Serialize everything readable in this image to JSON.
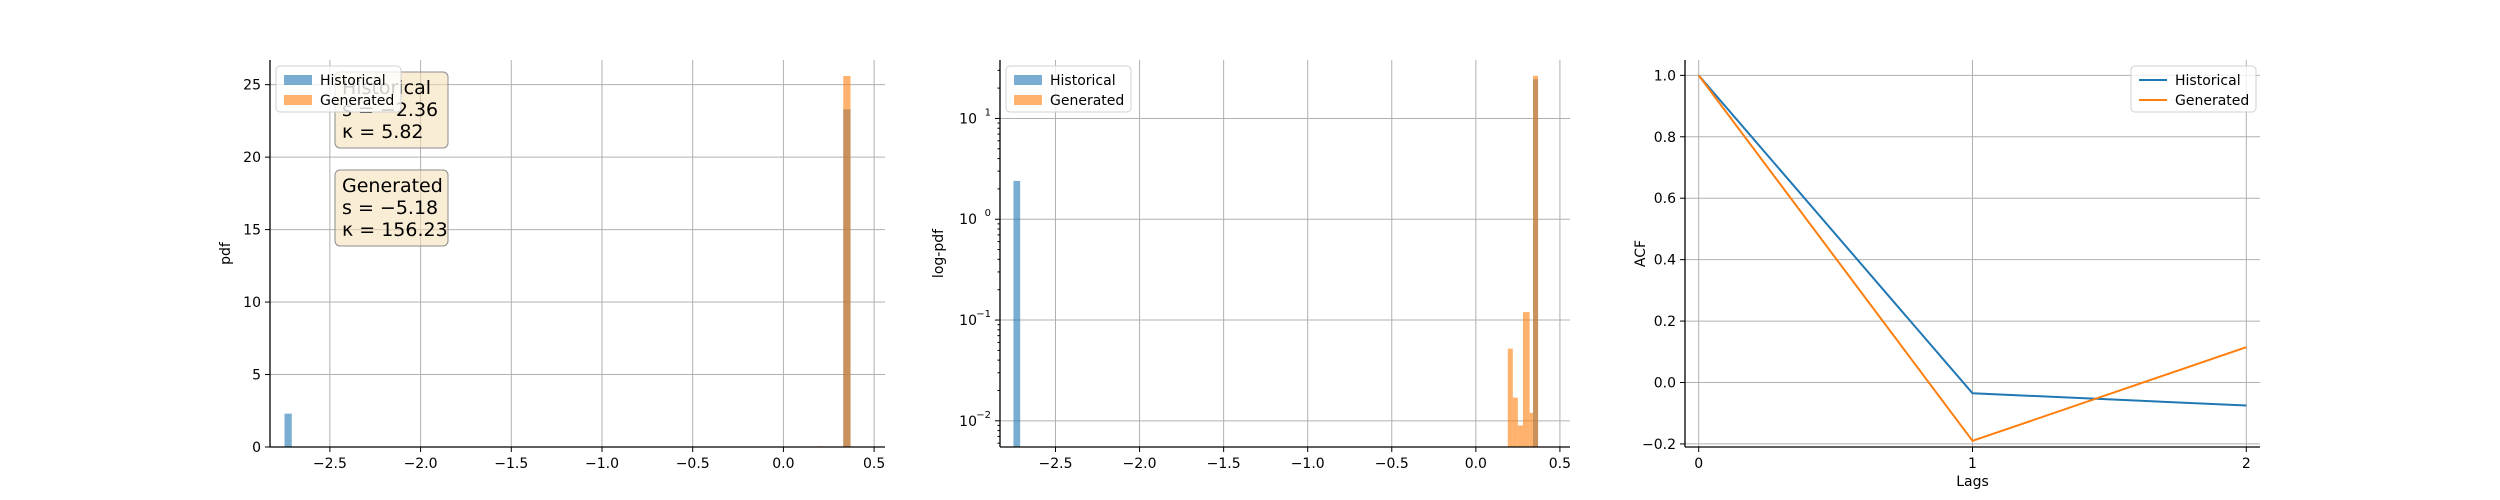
{
  "colors": {
    "historical": "#1f77b4",
    "generated": "#ff7f0e",
    "grid": "#b0b0b0",
    "stats_box_fill": "#f5deb3"
  },
  "chart_data": [
    {
      "type": "bar",
      "ylabel": "pdf",
      "xlim": [
        -2.83,
        0.56
      ],
      "ylim": [
        0,
        26.7
      ],
      "xticks": [
        -2.5,
        -2.0,
        -1.5,
        -1.0,
        -0.5,
        0.0,
        0.5
      ],
      "xtick_labels": [
        "−2.5",
        "−2.0",
        "−1.5",
        "−1.0",
        "−0.5",
        "0.0",
        "0.5"
      ],
      "yticks": [
        0,
        5,
        10,
        15,
        20,
        25
      ],
      "ytick_labels": [
        "0",
        "5",
        "10",
        "15",
        "20",
        "25"
      ],
      "grid": true,
      "legend": {
        "placement": "top-left",
        "entries": [
          "Historical",
          "Generated"
        ]
      },
      "series": [
        {
          "name": "Historical",
          "bins": [
            {
              "x0": -2.75,
              "x1": -2.71,
              "y": 2.3
            },
            {
              "x0": 0.33,
              "x1": 0.37,
              "y": 23.3
            }
          ]
        },
        {
          "name": "Generated",
          "bins": [
            {
              "x0": 0.19,
              "x1": 0.22,
              "y": 0.05
            },
            {
              "x0": 0.22,
              "x1": 0.25,
              "y": 0.02
            },
            {
              "x0": 0.33,
              "x1": 0.37,
              "y": 25.6
            }
          ]
        }
      ],
      "annotations": [
        {
          "lines": [
            "Historical",
            "s = −2.36",
            "κ = 5.82"
          ],
          "placement": "upper-left"
        },
        {
          "lines": [
            "Generated",
            "s = −5.18",
            "κ = 156.23"
          ],
          "placement": "upper-left-lower"
        }
      ]
    },
    {
      "type": "bar",
      "ylabel": "log-pdf",
      "yscale": "log",
      "xlim": [
        -2.83,
        0.56
      ],
      "ylim": [
        0.0055,
        38
      ],
      "xticks": [
        -2.5,
        -2.0,
        -1.5,
        -1.0,
        -0.5,
        0.0,
        0.5
      ],
      "xtick_labels": [
        "−2.5",
        "−2.0",
        "−1.5",
        "−1.0",
        "−0.5",
        "0.0",
        "0.5"
      ],
      "yticks": [
        0.01,
        0.1,
        1,
        10
      ],
      "ytick_base": "10",
      "ytick_exponents": [
        "−2",
        "−1",
        "0",
        "1"
      ],
      "grid": true,
      "legend": {
        "placement": "top-left",
        "entries": [
          "Historical",
          "Generated"
        ]
      },
      "series": [
        {
          "name": "Historical",
          "bins": [
            {
              "x0": -2.75,
              "x1": -2.71,
              "y": 2.4
            },
            {
              "x0": 0.34,
              "x1": 0.37,
              "y": 24.5
            }
          ]
        },
        {
          "name": "Generated",
          "bins": [
            {
              "x0": 0.19,
              "x1": 0.22,
              "y": 0.052
            },
            {
              "x0": 0.22,
              "x1": 0.25,
              "y": 0.017
            },
            {
              "x0": 0.25,
              "x1": 0.28,
              "y": 0.009
            },
            {
              "x0": 0.28,
              "x1": 0.32,
              "y": 0.12
            },
            {
              "x0": 0.32,
              "x1": 0.34,
              "y": 0.012
            },
            {
              "x0": 0.34,
              "x1": 0.37,
              "y": 26.5
            }
          ]
        }
      ]
    },
    {
      "type": "line",
      "xlabel": "Lags",
      "ylabel": "ACF",
      "x": [
        0,
        1,
        2
      ],
      "xlim": [
        -0.05,
        2.05
      ],
      "ylim": [
        -0.21,
        1.05
      ],
      "xticks": [
        0,
        1,
        2
      ],
      "xtick_labels": [
        "0",
        "1",
        "2"
      ],
      "yticks": [
        -0.2,
        0.0,
        0.2,
        0.4,
        0.6,
        0.8,
        1.0
      ],
      "ytick_labels": [
        "−0.2",
        "0.0",
        "0.2",
        "0.4",
        "0.6",
        "0.8",
        "1.0"
      ],
      "grid": true,
      "legend": {
        "placement": "top-right",
        "entries": [
          "Historical",
          "Generated"
        ]
      },
      "series": [
        {
          "name": "Historical",
          "values": [
            1.0,
            -0.035,
            -0.075
          ]
        },
        {
          "name": "Generated",
          "values": [
            1.0,
            -0.19,
            0.115
          ]
        }
      ]
    }
  ]
}
